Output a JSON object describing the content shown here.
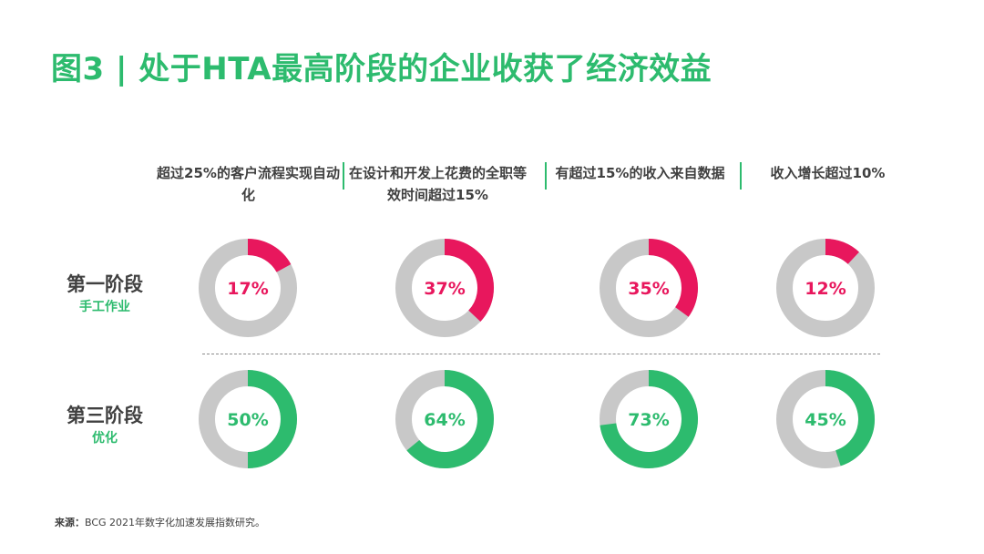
{
  "title": "图3 | 处于HTA最高阶段的企业收获了经济效益",
  "columns": [
    "超过25%的客户流程实现自动化",
    "在设计和开发上花费的全职等效时间超过15%",
    "有超过15%的收入来自数据",
    "收入增长超过10%"
  ],
  "rows": [
    {
      "label": "第一阶段",
      "sublabel": "手工作业"
    },
    {
      "label": "第三阶段",
      "sublabel": "优化"
    }
  ],
  "colors": {
    "title": "#2dbb6e",
    "stage1": "#e8175d",
    "stage3": "#2dbb6e",
    "remainder": "#c8c8c8",
    "text": "#404040"
  },
  "chart_data": {
    "type": "pie",
    "style": "donut-grid",
    "categories": [
      "超过25%的客户流程实现自动化",
      "在设计和开发上花费的全职等效时间超过15%",
      "有超过15%的收入来自数据",
      "收入增长超过10%"
    ],
    "series": [
      {
        "name": "第一阶段",
        "values": [
          17,
          37,
          35,
          12
        ],
        "labels": [
          "17%",
          "37%",
          "35%",
          "12%"
        ]
      },
      {
        "name": "第三阶段",
        "values": [
          50,
          64,
          73,
          45
        ],
        "labels": [
          "50%",
          "64%",
          "73%",
          "45%"
        ]
      }
    ]
  },
  "source": {
    "label": "来源：",
    "text": "BCG 2021年数字化加速发展指数研究。"
  }
}
